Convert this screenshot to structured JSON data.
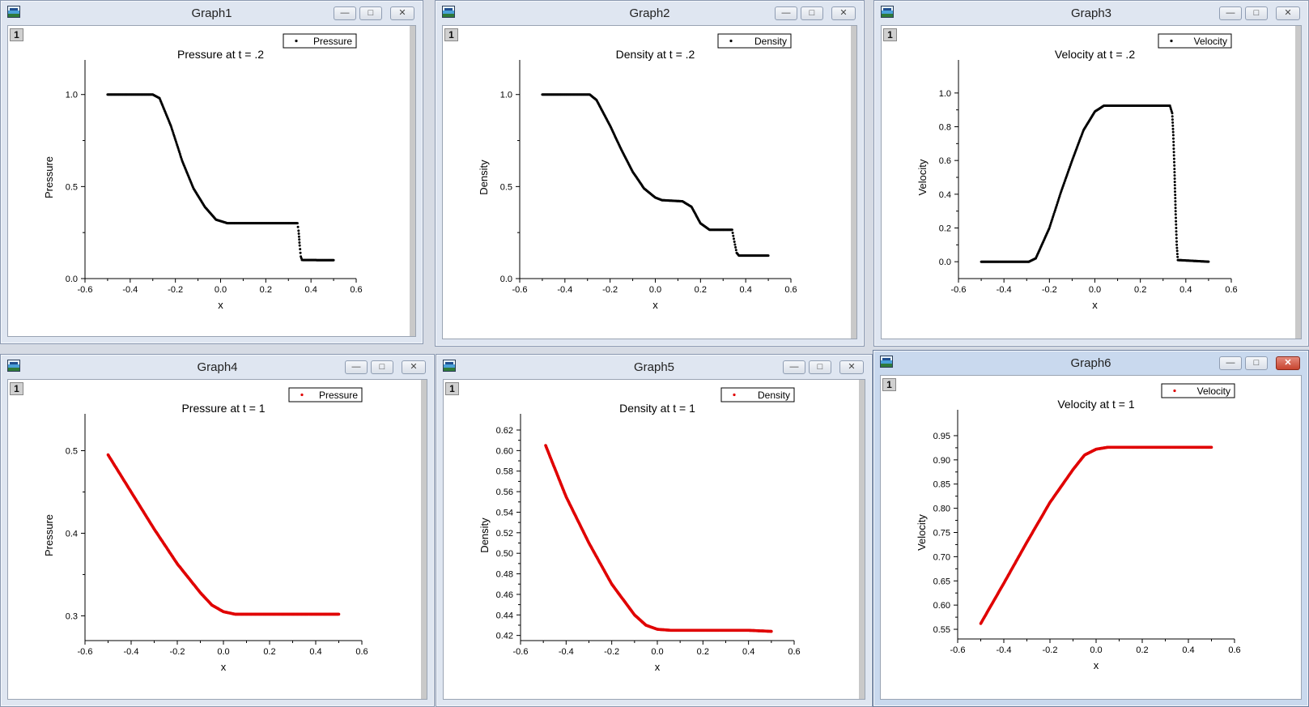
{
  "colors": {
    "black_series": "#000000",
    "red_series": "#e00000"
  },
  "windows": [
    {
      "title": "Graph1",
      "layer": "1",
      "icon": "origin-graph-icon"
    },
    {
      "title": "Graph2",
      "layer": "1",
      "icon": "origin-graph-icon"
    },
    {
      "title": "Graph3",
      "layer": "1",
      "icon": "origin-graph-icon"
    },
    {
      "title": "Graph4",
      "layer": "1",
      "icon": "origin-graph-icon"
    },
    {
      "title": "Graph5",
      "layer": "1",
      "icon": "origin-graph-icon"
    },
    {
      "title": "Graph6",
      "layer": "1",
      "icon": "origin-graph-icon"
    }
  ],
  "chart_data": [
    {
      "type": "scatter",
      "title": "Pressure at t = .2",
      "xlabel": "x",
      "ylabel": "Pressure",
      "legend": "Pressure",
      "legend_position": "top-right",
      "color": "#000000",
      "xlim": [
        -0.6,
        0.6
      ],
      "ylim": [
        0.0,
        1.1
      ],
      "xticks": [
        "-0.6",
        "-0.4",
        "-0.2",
        "0.0",
        "0.2",
        "0.4",
        "0.6"
      ],
      "yticks": [
        "0.0",
        "0.5",
        "1.0"
      ],
      "points": [
        [
          -0.5,
          1.0
        ],
        [
          -0.3,
          1.0
        ],
        [
          -0.27,
          0.98
        ],
        [
          -0.22,
          0.83
        ],
        [
          -0.17,
          0.64
        ],
        [
          -0.12,
          0.49
        ],
        [
          -0.07,
          0.39
        ],
        [
          -0.02,
          0.32
        ],
        [
          0.03,
          0.301
        ],
        [
          0.34,
          0.301
        ],
        [
          0.345,
          0.26
        ],
        [
          0.35,
          0.18
        ],
        [
          0.355,
          0.12
        ],
        [
          0.36,
          0.101
        ],
        [
          0.5,
          0.1
        ]
      ]
    },
    {
      "type": "scatter",
      "title": "Density at t = .2",
      "xlabel": "x",
      "ylabel": "Density",
      "legend": "Density",
      "legend_position": "top-right",
      "color": "#000000",
      "xlim": [
        -0.6,
        0.6
      ],
      "ylim": [
        0.0,
        1.1
      ],
      "xticks": [
        "-0.6",
        "-0.4",
        "-0.2",
        "0.0",
        "0.2",
        "0.4",
        "0.6"
      ],
      "yticks": [
        "0.0",
        "0.5",
        "1.0"
      ],
      "points": [
        [
          -0.5,
          1.0
        ],
        [
          -0.29,
          1.0
        ],
        [
          -0.26,
          0.97
        ],
        [
          -0.2,
          0.83
        ],
        [
          -0.15,
          0.7
        ],
        [
          -0.1,
          0.58
        ],
        [
          -0.05,
          0.49
        ],
        [
          0.0,
          0.44
        ],
        [
          0.03,
          0.426
        ],
        [
          0.12,
          0.42
        ],
        [
          0.16,
          0.39
        ],
        [
          0.2,
          0.3
        ],
        [
          0.24,
          0.265
        ],
        [
          0.34,
          0.265
        ],
        [
          0.35,
          0.2
        ],
        [
          0.36,
          0.14
        ],
        [
          0.37,
          0.125
        ],
        [
          0.5,
          0.125
        ]
      ]
    },
    {
      "type": "scatter",
      "title": "Velocity at t = .2",
      "xlabel": "x",
      "ylabel": "Velocity",
      "legend": "Velocity",
      "legend_position": "top-right",
      "color": "#000000",
      "xlim": [
        -0.6,
        0.6
      ],
      "ylim": [
        -0.1,
        1.1
      ],
      "xticks": [
        "-0.6",
        "-0.4",
        "-0.2",
        "0.0",
        "0.2",
        "0.4",
        "0.6"
      ],
      "yticks": [
        "0.0",
        "0.2",
        "0.4",
        "0.6",
        "0.8",
        "1.0"
      ],
      "points": [
        [
          -0.5,
          0.0
        ],
        [
          -0.29,
          0.0
        ],
        [
          -0.26,
          0.02
        ],
        [
          -0.2,
          0.2
        ],
        [
          -0.15,
          0.41
        ],
        [
          -0.1,
          0.6
        ],
        [
          -0.05,
          0.78
        ],
        [
          0.0,
          0.89
        ],
        [
          0.04,
          0.925
        ],
        [
          0.33,
          0.925
        ],
        [
          0.34,
          0.88
        ],
        [
          0.345,
          0.75
        ],
        [
          0.35,
          0.55
        ],
        [
          0.355,
          0.3
        ],
        [
          0.36,
          0.1
        ],
        [
          0.365,
          0.01
        ],
        [
          0.5,
          0.0
        ]
      ]
    },
    {
      "type": "scatter",
      "title": "Pressure at t = 1",
      "xlabel": "x",
      "ylabel": "Pressure",
      "legend": "Pressure",
      "legend_position": "top-right",
      "color": "#e00000",
      "xlim": [
        -0.6,
        0.6
      ],
      "ylim": [
        0.27,
        0.525
      ],
      "xticks": [
        "-0.6",
        "-0.4",
        "-0.2",
        "0.0",
        "0.2",
        "0.4",
        "0.6"
      ],
      "yticks": [
        "0.3",
        "0.4",
        "0.5"
      ],
      "points": [
        [
          -0.5,
          0.495
        ],
        [
          -0.4,
          0.45
        ],
        [
          -0.3,
          0.405
        ],
        [
          -0.2,
          0.363
        ],
        [
          -0.1,
          0.328
        ],
        [
          -0.05,
          0.313
        ],
        [
          0.0,
          0.305
        ],
        [
          0.05,
          0.302
        ],
        [
          0.5,
          0.302
        ]
      ]
    },
    {
      "type": "scatter",
      "title": "Density at t = 1",
      "xlabel": "x",
      "ylabel": "Density",
      "legend": "Density",
      "legend_position": "top-right",
      "color": "#e00000",
      "xlim": [
        -0.6,
        0.6
      ],
      "ylim": [
        0.415,
        0.62
      ],
      "xticks": [
        "-0.6",
        "-0.4",
        "-0.2",
        "0.0",
        "0.2",
        "0.4",
        "0.6"
      ],
      "yticks": [
        "0.42",
        "0.44",
        "0.46",
        "0.48",
        "0.50",
        "0.52",
        "0.54",
        "0.56",
        "0.58",
        "0.60",
        "0.62"
      ],
      "points": [
        [
          -0.49,
          0.605
        ],
        [
          -0.4,
          0.555
        ],
        [
          -0.3,
          0.51
        ],
        [
          -0.2,
          0.47
        ],
        [
          -0.1,
          0.44
        ],
        [
          -0.05,
          0.43
        ],
        [
          0.0,
          0.426
        ],
        [
          0.06,
          0.425
        ],
        [
          0.4,
          0.425
        ],
        [
          0.5,
          0.424
        ]
      ]
    },
    {
      "type": "scatter",
      "title": "Velocity at t = 1",
      "xlabel": "x",
      "ylabel": "Velocity",
      "legend": "Velocity",
      "legend_position": "top-right",
      "color": "#e00000",
      "xlim": [
        -0.6,
        0.6
      ],
      "ylim": [
        0.53,
        0.97
      ],
      "xticks": [
        "-0.6",
        "-0.4",
        "-0.2",
        "0.0",
        "0.2",
        "0.4",
        "0.6"
      ],
      "yticks": [
        "0.55",
        "0.60",
        "0.65",
        "0.70",
        "0.75",
        "0.80",
        "0.85",
        "0.90",
        "0.95"
      ],
      "points": [
        [
          -0.5,
          0.562
        ],
        [
          -0.4,
          0.645
        ],
        [
          -0.3,
          0.73
        ],
        [
          -0.2,
          0.812
        ],
        [
          -0.1,
          0.88
        ],
        [
          -0.05,
          0.91
        ],
        [
          0.0,
          0.922
        ],
        [
          0.05,
          0.926
        ],
        [
          0.5,
          0.926
        ]
      ]
    }
  ]
}
